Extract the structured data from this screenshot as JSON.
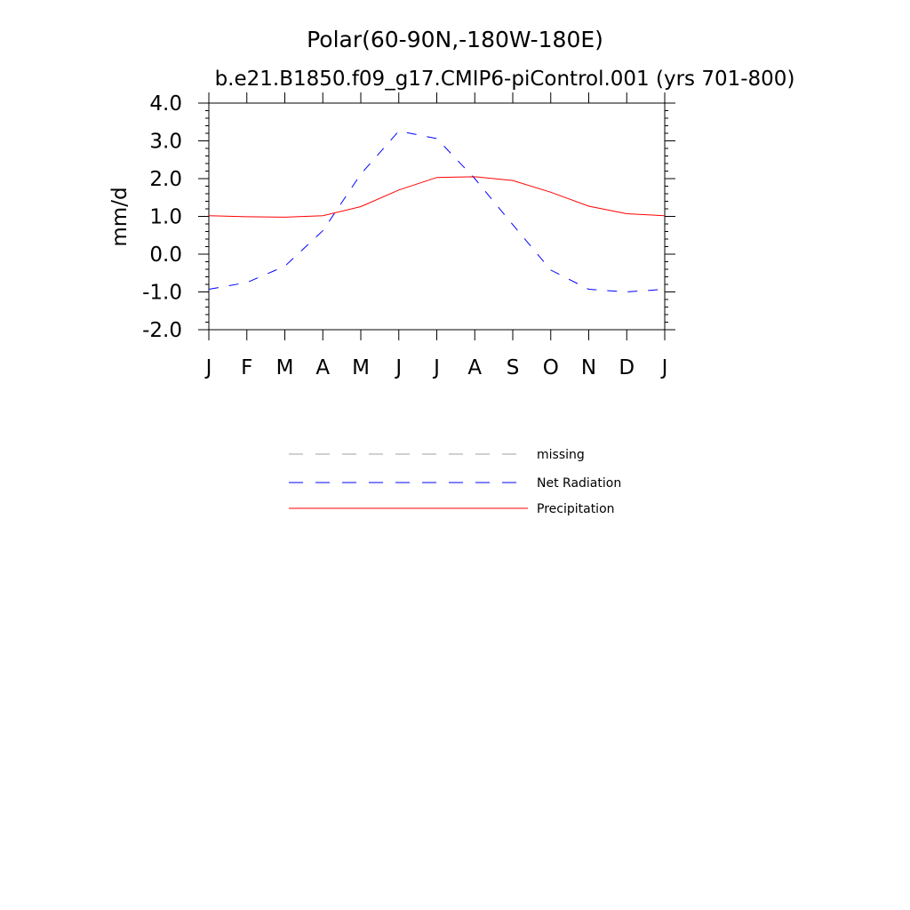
{
  "chart_data": {
    "type": "line",
    "title": "Polar(60-90N,-180W-180E)",
    "subtitle": "b.e21.B1850.f09_g17.CMIP6-piControl.001 (yrs 701-800)",
    "xlabel": "",
    "ylabel": "mm/d",
    "ylim": [
      -2.0,
      4.0
    ],
    "yticks": [
      -2.0,
      -1.0,
      0.0,
      1.0,
      2.0,
      3.0,
      4.0
    ],
    "ytick_labels": [
      "-2.0",
      "-1.0",
      "0.0",
      "1.0",
      "2.0",
      "3.0",
      "4.0"
    ],
    "categories": [
      "J",
      "F",
      "M",
      "A",
      "M",
      "J",
      "J",
      "A",
      "S",
      "O",
      "N",
      "D",
      "J"
    ],
    "grid": false,
    "legend_position": "below-center",
    "series": [
      {
        "name": "Net Radiation",
        "color": "#0000ff",
        "style": "dashed",
        "values": [
          -0.93,
          -0.75,
          -0.32,
          0.62,
          2.12,
          3.26,
          3.06,
          2.0,
          0.78,
          -0.42,
          -0.93,
          -1.0,
          -0.93
        ]
      },
      {
        "name": "Precipitation",
        "color": "#ff0000",
        "style": "solid",
        "values": [
          1.02,
          0.99,
          0.98,
          1.02,
          1.26,
          1.7,
          2.03,
          2.05,
          1.95,
          1.64,
          1.27,
          1.07,
          1.02
        ]
      }
    ],
    "legend": [
      {
        "label": "missing",
        "color": "#a0a0a0",
        "style": "dashed"
      },
      {
        "label": "Net Radiation",
        "color": "#0000ff",
        "style": "dashed"
      },
      {
        "label": "Precipitation",
        "color": "#ff0000",
        "style": "solid"
      }
    ]
  }
}
